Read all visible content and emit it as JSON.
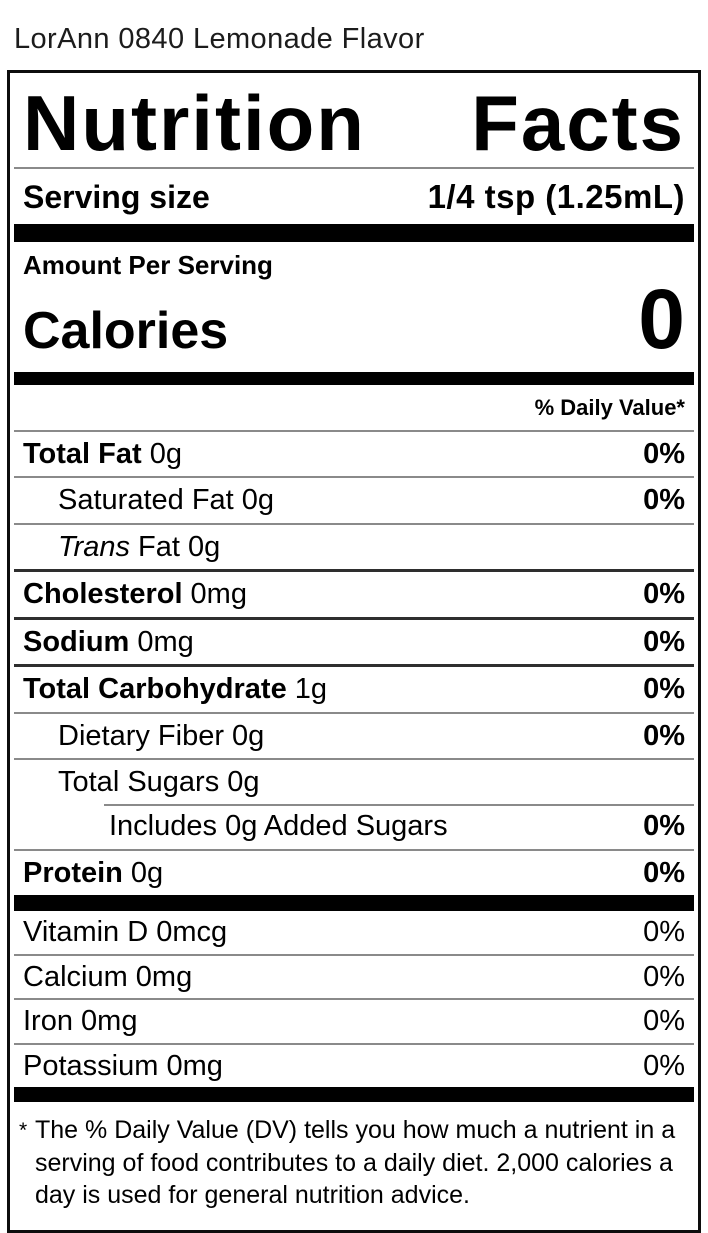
{
  "page": {
    "title": "LorAnn 0840 Lemonade Flavor"
  },
  "label": {
    "title": "Nutrition Facts",
    "serving": {
      "label": "Serving size",
      "value": "1/4 tsp (1.25mL)"
    },
    "amount_per_serving": "Amount Per Serving",
    "calories": {
      "label": "Calories",
      "value": "0"
    },
    "daily_value_header": "% Daily Value*",
    "nutrients": [
      {
        "name": "Total Fat",
        "amount": "0g",
        "dv": "0%"
      },
      {
        "text": "Saturated Fat 0g",
        "dv": "0%"
      },
      {
        "italic": "Trans",
        "text": "Fat 0g",
        "dv": ""
      },
      {
        "name": "Cholesterol",
        "amount": "0mg",
        "dv": "0%"
      },
      {
        "name": "Sodium",
        "amount": "0mg",
        "dv": "0%"
      },
      {
        "name": "Total Carbohydrate",
        "amount": "1g",
        "dv": "0%"
      },
      {
        "text": "Dietary Fiber 0g",
        "dv": "0%"
      },
      {
        "text": "Total Sugars 0g",
        "dv": ""
      },
      {
        "text": "Includes 0g Added Sugars",
        "dv": "0%"
      },
      {
        "name": "Protein",
        "amount": "0g",
        "dv": "0%"
      }
    ],
    "vitamins": [
      {
        "text": "Vitamin D 0mcg",
        "dv": "0%"
      },
      {
        "text": "Calcium 0mg",
        "dv": "0%"
      },
      {
        "text": "Iron 0mg",
        "dv": "0%"
      },
      {
        "text": "Potassium 0mg",
        "dv": "0%"
      }
    ],
    "footnote_marker": "*",
    "footnote": "The % Daily Value (DV) tells you how much a nutrient in a serving of food contributes to a daily diet. 2,000 calories a day is used for general nutrition advice."
  },
  "colors": {
    "text": "#000000",
    "background": "#ffffff",
    "rule_thin": "#8a8a8a",
    "rule_medium": "#2e2e2e",
    "divider_bar": "#000000"
  }
}
